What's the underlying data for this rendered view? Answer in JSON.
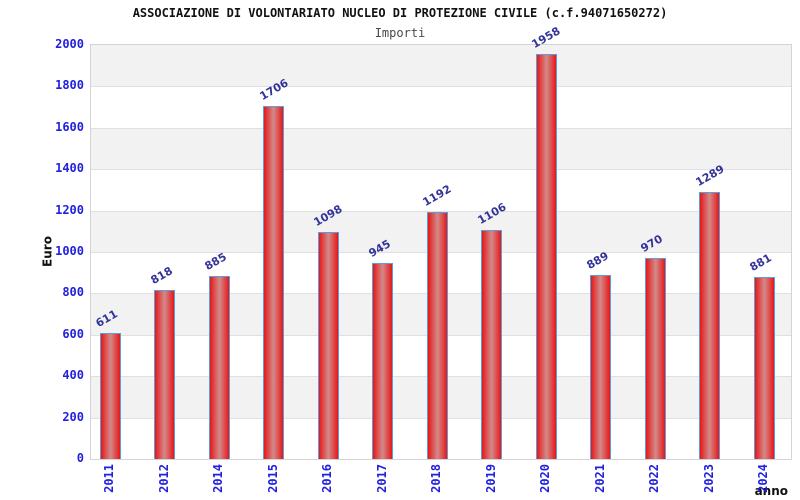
{
  "chart_data": {
    "type": "bar",
    "title": "ASSOCIAZIONE DI VOLONTARIATO NUCLEO DI PROTEZIONE CIVILE (c.f.94071650272)",
    "subtitle": "Importi",
    "xlabel": "anno",
    "ylabel": "Euro",
    "categories": [
      "2011",
      "2012",
      "2014",
      "2015",
      "2016",
      "2017",
      "2018",
      "2019",
      "2020",
      "2021",
      "2022",
      "2023",
      "2024"
    ],
    "values": [
      611,
      818,
      885,
      1706,
      1098,
      945,
      1192,
      1106,
      1958,
      889,
      970,
      1289,
      881
    ],
    "ylim": [
      0,
      2000
    ],
    "ytick_step": 200,
    "grid": "horizontal-bands-alternating",
    "legend": "none",
    "value_labels_rotation_deg": -30,
    "xtick_rotation_deg": -90,
    "colors": {
      "bar_edge": "#e81717",
      "bar_mid": "#d28a8a",
      "bar_border": "#56a0e0",
      "tick_label": "#2121de",
      "value_label": "#333399",
      "band_gray": "#f2f2f2",
      "band_white": "#ffffff",
      "gridline": "#e0e0e0",
      "plot_border": "#d4d4d4",
      "title_color": "#111111",
      "subtitle_color": "#4a4a4a",
      "axis_label_color": "#111111"
    }
  }
}
